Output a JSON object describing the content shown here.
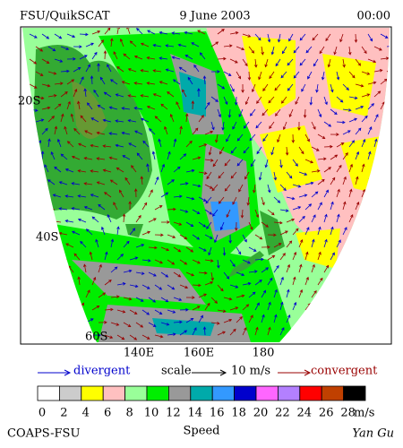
{
  "header": {
    "left": "FSU/QuikSCAT",
    "center": "9 June 2003",
    "right": "00:00"
  },
  "map": {
    "lat_labels": [
      "20S",
      "40S",
      "60S"
    ],
    "lon_labels": [
      "140E",
      "160E",
      "180"
    ]
  },
  "legend": {
    "divergent": "divergent",
    "scale": "scale",
    "scale_value": "10 m/s",
    "convergent": "convergent"
  },
  "colorbar": {
    "colors": [
      "#ffffff",
      "#cccccc",
      "#ffff00",
      "#ffc0c0",
      "#99ff99",
      "#00ee00",
      "#999999",
      "#00aaaa",
      "#3399ff",
      "#0000cc",
      "#ff66ff",
      "#b380ff",
      "#ff0000",
      "#c04000",
      "#000000"
    ],
    "labels": [
      0,
      2,
      4,
      6,
      8,
      10,
      12,
      14,
      16,
      18,
      20,
      22,
      24,
      26,
      28
    ],
    "unit": "m/s",
    "title": "Speed"
  },
  "footer": {
    "left": "COAPS-FSU",
    "right": "Yan Gu"
  }
}
